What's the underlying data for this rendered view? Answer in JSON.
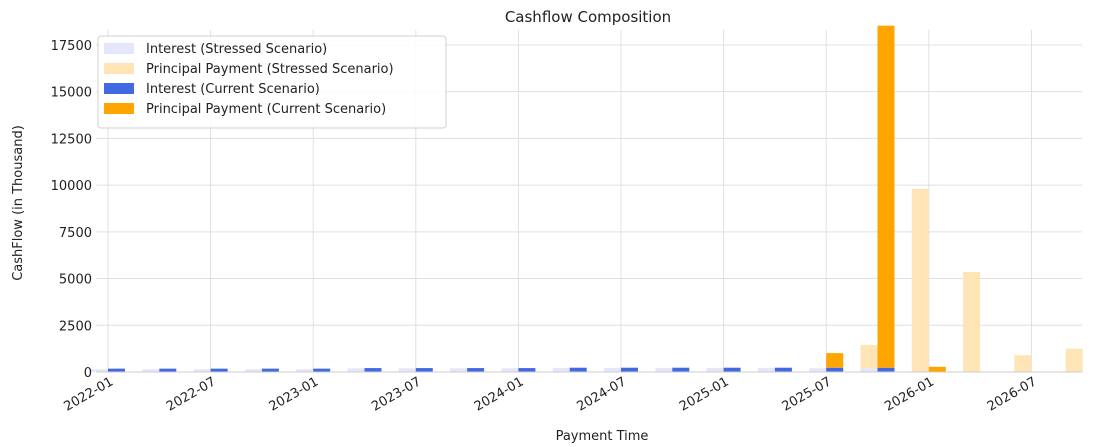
{
  "chart_data": {
    "type": "bar",
    "title": "Cashflow Composition",
    "xlabel": "Payment Time",
    "ylabel": "CashFlow (in Thousand)",
    "ylim": [
      0,
      18300
    ],
    "yticks": [
      0,
      2500,
      5000,
      7500,
      10000,
      12500,
      15000,
      17500
    ],
    "xticks": [
      "2022-01",
      "2022-07",
      "2023-01",
      "2023-07",
      "2024-01",
      "2024-07",
      "2025-01",
      "2025-07",
      "2026-01",
      "2026-07"
    ],
    "grid": true,
    "legend_position": "top-left",
    "periods": [
      "2022-01",
      "2022-04",
      "2022-07",
      "2022-10",
      "2023-01",
      "2023-04",
      "2023-07",
      "2023-10",
      "2024-01",
      "2024-04",
      "2024-07",
      "2024-10",
      "2025-01",
      "2025-04",
      "2025-07",
      "2025-10",
      "2026-01",
      "2026-04",
      "2026-07",
      "2026-10"
    ],
    "series": [
      {
        "name": "Interest (Stressed Scenario)",
        "color": "#e6e6fa",
        "values": [
          150,
          150,
          150,
          150,
          150,
          200,
          200,
          200,
          200,
          220,
          220,
          220,
          220,
          220,
          200,
          200,
          0,
          0,
          0,
          0
        ]
      },
      {
        "name": "Principal Payment (Stressed Scenario)",
        "color": "#ffe4b5",
        "values": [
          0,
          0,
          0,
          0,
          0,
          0,
          0,
          0,
          0,
          0,
          0,
          0,
          0,
          0,
          0,
          1250,
          9800,
          5350,
          900,
          1250
        ]
      },
      {
        "name": "Interest (Current Scenario)",
        "color": "#4169e1",
        "values": [
          180,
          180,
          180,
          180,
          180,
          210,
          210,
          210,
          210,
          230,
          230,
          230,
          230,
          230,
          230,
          230,
          0,
          0,
          0,
          0
        ]
      },
      {
        "name": "Principal Payment (Current Scenario)",
        "color": "#ffa500",
        "values": [
          0,
          0,
          0,
          0,
          0,
          0,
          0,
          0,
          0,
          0,
          0,
          0,
          0,
          0,
          780,
          18300,
          280,
          0,
          0,
          0
        ]
      }
    ]
  }
}
